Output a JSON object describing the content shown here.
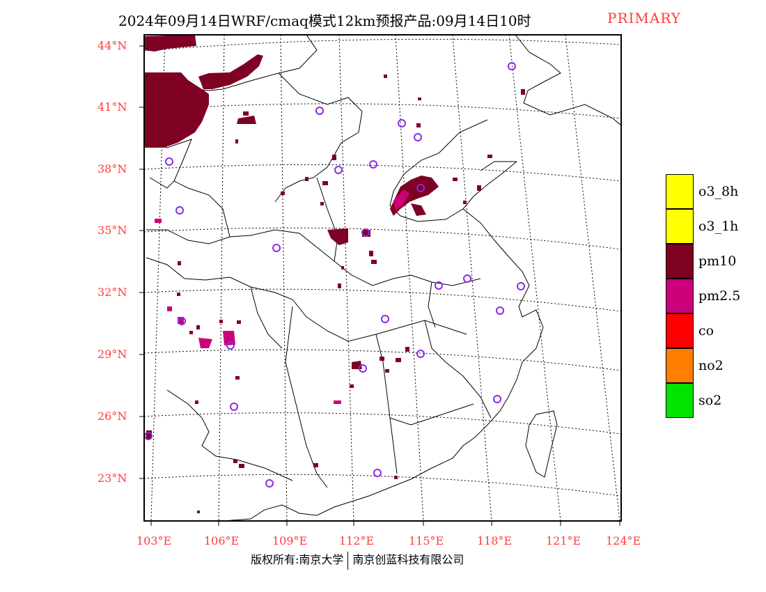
{
  "title": "2024年09月14日WRF/cmaq模式12km预报产品:09月14日10时",
  "title_tag": "PRIMARY",
  "credit": {
    "left": "版权所有:南京大学",
    "right": "南京创蓝科技有限公司"
  },
  "lat_labels": [
    "44°N",
    "41°N",
    "38°N",
    "35°N",
    "32°N",
    "29°N",
    "26°N",
    "23°N"
  ],
  "lon_labels": [
    "103°E",
    "106°E",
    "109°E",
    "112°E",
    "115°E",
    "118°E",
    "121°E",
    "124°E"
  ],
  "legend": [
    {
      "label": "o3_8h",
      "color": "#ffff00"
    },
    {
      "label": "o3_1h",
      "color": "#ffff00"
    },
    {
      "label": "pm10",
      "color": "#7e0023"
    },
    {
      "label": "pm2.5",
      "color": "#cc007a"
    },
    {
      "label": "co",
      "color": "#ff0000"
    },
    {
      "label": "no2",
      "color": "#ff7e00"
    },
    {
      "label": "so2",
      "color": "#00e400"
    }
  ],
  "colors": {
    "pm10": "#7e0023",
    "pm25": "#cc007a",
    "station_marker": "#8a2be2",
    "label_red": "#ff3b3b"
  }
}
